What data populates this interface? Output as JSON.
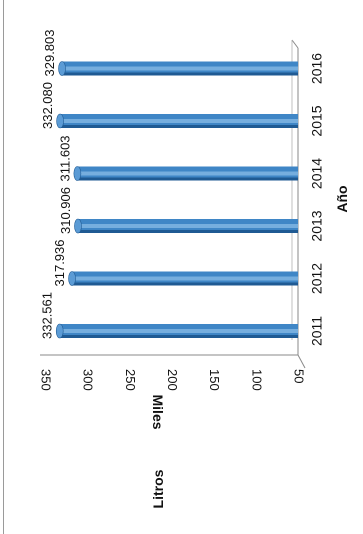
{
  "chart_data": {
    "type": "bar",
    "categories": [
      "2011",
      "2012",
      "2013",
      "2014",
      "2015",
      "2016"
    ],
    "values": [
      332.561,
      317.936,
      310.906,
      311.603,
      332.08,
      329.803
    ],
    "data_labels": [
      "332.561",
      "317.936",
      "310.906",
      "311.603",
      "332.080",
      "329.803"
    ],
    "ticks": [
      "50",
      "100",
      "150",
      "200",
      "250",
      "300",
      "350"
    ],
    "tick_values": [
      50,
      100,
      150,
      200,
      250,
      300,
      350
    ],
    "ylim": [
      50,
      350
    ],
    "ylabel": "Miles",
    "xlabel": "Año",
    "unit_label": "Litros",
    "grid": false,
    "legend": "none",
    "bar_color": "#3f86c6",
    "bar_highlight": "#8fbfe8",
    "bar_shadow": "#1f5a93",
    "orientation": "rotated-90-clockwise"
  }
}
